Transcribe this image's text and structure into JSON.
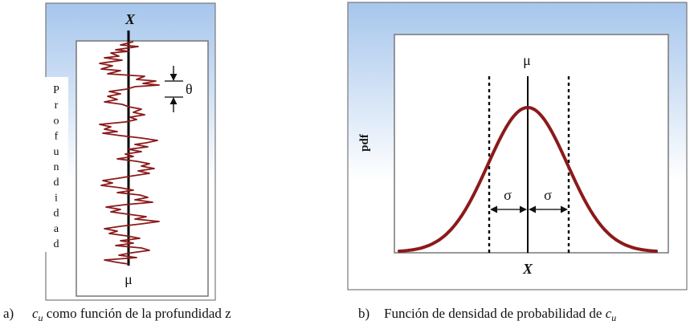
{
  "panel_a": {
    "label": "a)",
    "caption_var": "c",
    "caption_sub": "u",
    "caption_text": " como función de la profundidad z",
    "x_label": "X",
    "mu_label": "μ",
    "theta_label": "θ",
    "depth_letters": [
      "P",
      "r",
      "o",
      "f",
      "u",
      "n",
      "d",
      "i",
      "d",
      "a",
      "d"
    ]
  },
  "panel_b": {
    "label": "b)",
    "caption_text": "Función de densidad de probabilidad de ",
    "caption_var": "c",
    "caption_sub": "u",
    "mu_label": "μ",
    "x_label": "X",
    "y_label": "pdf",
    "sigma_left": "σ",
    "sigma_right": "σ"
  },
  "colors": {
    "curve": "#8b1a1a",
    "sky_top": "#a9c8ec",
    "sky_bottom": "#ffffff",
    "frame": "#7a7a7a"
  }
}
